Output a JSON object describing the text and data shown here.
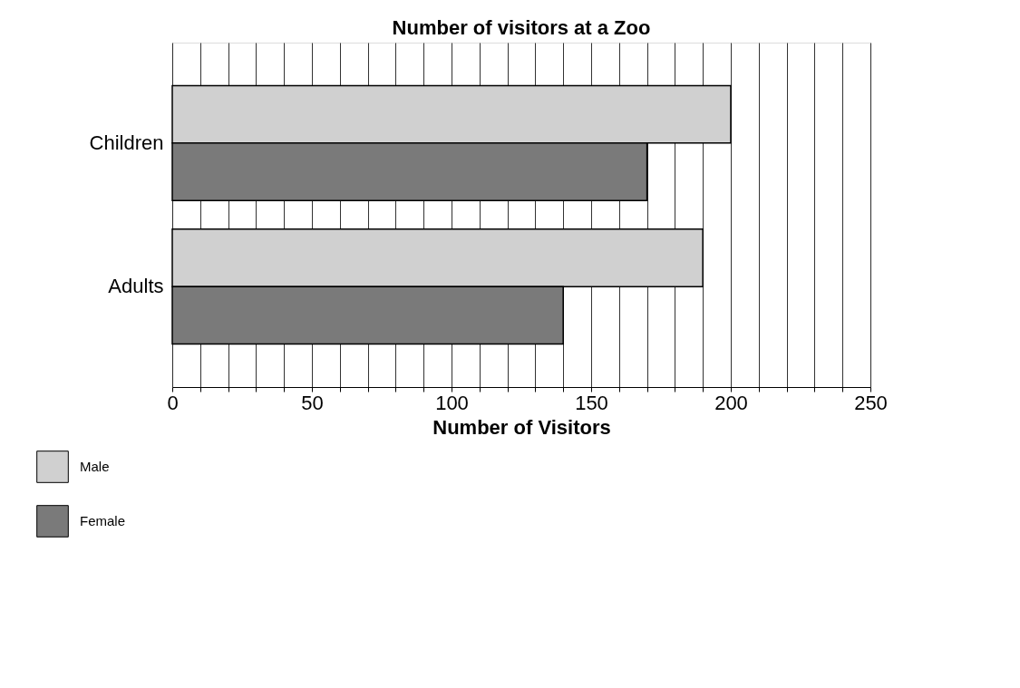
{
  "chart_data": {
    "type": "bar",
    "orientation": "horizontal",
    "title": "Number of visitors at a Zoo",
    "xlabel": "Number of Visitors",
    "categories": [
      "Children",
      "Adults"
    ],
    "series": [
      {
        "name": "Male",
        "color": "#d0d0d0",
        "values": [
          200,
          190
        ]
      },
      {
        "name": "Female",
        "color": "#7a7a7a",
        "values": [
          170,
          140
        ]
      }
    ],
    "xlim": [
      0,
      250
    ],
    "xticks": [
      0,
      {
        "value": 10,
        "label": null
      },
      {
        "value": 20,
        "label": null
      },
      {
        "value": 30,
        "label": null
      },
      {
        "value": 40,
        "label": null
      },
      50,
      {
        "value": 60,
        "label": null
      },
      {
        "value": 70,
        "label": null
      },
      {
        "value": 80,
        "label": null
      },
      {
        "value": 90,
        "label": null
      },
      100,
      {
        "value": 110,
        "label": null
      },
      {
        "value": 120,
        "label": null
      },
      {
        "value": 130,
        "label": null
      },
      {
        "value": 140,
        "label": null
      },
      150,
      {
        "value": 160,
        "label": null
      },
      {
        "value": 170,
        "label": null
      },
      {
        "value": 180,
        "label": null
      },
      {
        "value": 190,
        "label": null
      },
      200,
      {
        "value": 210,
        "label": null
      },
      {
        "value": 220,
        "label": null
      },
      {
        "value": 230,
        "label": null
      },
      {
        "value": 240,
        "label": null
      },
      250
    ],
    "grid": "x",
    "legend": "bottom left"
  }
}
